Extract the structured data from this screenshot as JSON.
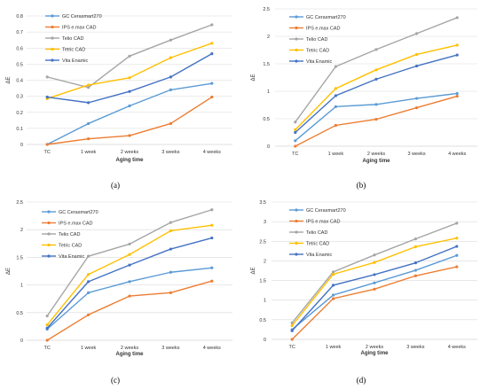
{
  "chart_data": [
    {
      "type": "line",
      "panel_label": "(a)",
      "categories": [
        "TC",
        "1 week",
        "2 weeks",
        "3 weeks",
        "4 weeks"
      ],
      "xlabel": "Aging time",
      "ylabel": "ΔE",
      "ylim": [
        0,
        0.8
      ],
      "yticks": [
        "0",
        "0.1",
        "0.2",
        "0.3",
        "0.4",
        "0.5",
        "0.6",
        "0.7",
        "0.8"
      ],
      "grid": "horizontal",
      "legend_position": "top-left",
      "series": [
        {
          "name": "GC Cerasmart270",
          "color": "#5B9BD5",
          "values": [
            0.0,
            0.13,
            0.24,
            0.34,
            0.38
          ]
        },
        {
          "name": "IPS e.max CAD",
          "color": "#ED7D31",
          "values": [
            0.0,
            0.035,
            0.055,
            0.13,
            0.295
          ]
        },
        {
          "name": "Telio CAD",
          "color": "#A5A5A5",
          "values": [
            0.42,
            0.355,
            0.55,
            0.65,
            0.745
          ]
        },
        {
          "name": "Tetric CAD",
          "color": "#FFC000",
          "values": [
            0.285,
            0.37,
            0.415,
            0.54,
            0.63
          ]
        },
        {
          "name": "Vita Enamic",
          "color": "#4472C4",
          "values": [
            0.295,
            0.26,
            0.33,
            0.42,
            0.565
          ]
        }
      ]
    },
    {
      "type": "line",
      "panel_label": "(b)",
      "categories": [
        "TC",
        "1 week",
        "2 weeks",
        "3 weeks",
        "4 weeks"
      ],
      "xlabel": "Aging time",
      "ylabel": "ΔE",
      "ylim": [
        0,
        2.5
      ],
      "yticks": [
        "0",
        "0.5",
        "1",
        "1.5",
        "2",
        "2.5"
      ],
      "grid": "horizontal",
      "legend_position": "top-left",
      "series": [
        {
          "name": "GC Cerasmart270",
          "color": "#5B9BD5",
          "values": [
            0.1,
            0.72,
            0.76,
            0.87,
            0.96
          ]
        },
        {
          "name": "IPS e.max CAD",
          "color": "#ED7D31",
          "values": [
            0.0,
            0.38,
            0.49,
            0.7,
            0.91
          ]
        },
        {
          "name": "Telio CAD",
          "color": "#A5A5A5",
          "values": [
            0.44,
            1.45,
            1.76,
            2.05,
            2.34
          ]
        },
        {
          "name": "Tetric CAD",
          "color": "#FFC000",
          "values": [
            0.3,
            1.05,
            1.39,
            1.67,
            1.84
          ]
        },
        {
          "name": "Vita Enamic",
          "color": "#4472C4",
          "values": [
            0.25,
            0.92,
            1.22,
            1.46,
            1.66
          ]
        }
      ]
    },
    {
      "type": "line",
      "panel_label": "(c)",
      "categories": [
        "TC",
        "1 week",
        "2 weeks",
        "3 weeks",
        "4 weeks"
      ],
      "xlabel": "Aging time",
      "ylabel": "ΔE",
      "ylim": [
        0,
        2.5
      ],
      "yticks": [
        "0",
        "0.5",
        "1",
        "1.5",
        "2",
        "2.5"
      ],
      "grid": "horizontal",
      "legend_position": "top-left",
      "series": [
        {
          "name": "GC Cerasmart270",
          "color": "#5B9BD5",
          "values": [
            0.2,
            0.86,
            1.06,
            1.23,
            1.31
          ]
        },
        {
          "name": "IPS e.max CAD",
          "color": "#ED7D31",
          "values": [
            0.0,
            0.46,
            0.8,
            0.86,
            1.07
          ]
        },
        {
          "name": "Telio CAD",
          "color": "#A5A5A5",
          "values": [
            0.44,
            1.52,
            1.74,
            2.13,
            2.36
          ]
        },
        {
          "name": "Tetric CAD",
          "color": "#FFC000",
          "values": [
            0.28,
            1.19,
            1.55,
            1.98,
            2.08
          ]
        },
        {
          "name": "Vita Enamic",
          "color": "#4472C4",
          "values": [
            0.22,
            1.06,
            1.36,
            1.65,
            1.85
          ]
        }
      ]
    },
    {
      "type": "line",
      "panel_label": "(d)",
      "categories": [
        "TC",
        "1 week",
        "2 weeks",
        "3 weeks",
        "4 weeks"
      ],
      "xlabel": "Aging time",
      "ylabel": "ΔE",
      "ylim": [
        0,
        3.5
      ],
      "yticks": [
        "0",
        "0.5",
        "1",
        "1.5",
        "2",
        "2.5",
        "3",
        "3.5"
      ],
      "grid": "horizontal",
      "legend_position": "top-left",
      "series": [
        {
          "name": "GC Cerasmart270",
          "color": "#5B9BD5",
          "values": [
            0.25,
            1.13,
            1.44,
            1.76,
            2.14
          ]
        },
        {
          "name": "IPS e.max CAD",
          "color": "#ED7D31",
          "values": [
            0.0,
            1.04,
            1.28,
            1.62,
            1.85
          ]
        },
        {
          "name": "Telio CAD",
          "color": "#A5A5A5",
          "values": [
            0.42,
            1.72,
            2.15,
            2.56,
            2.96
          ]
        },
        {
          "name": "Tetric CAD",
          "color": "#FFC000",
          "values": [
            0.35,
            1.66,
            1.96,
            2.36,
            2.58
          ]
        },
        {
          "name": "Vita Enamic",
          "color": "#4472C4",
          "values": [
            0.22,
            1.38,
            1.65,
            1.95,
            2.37
          ]
        }
      ]
    }
  ]
}
